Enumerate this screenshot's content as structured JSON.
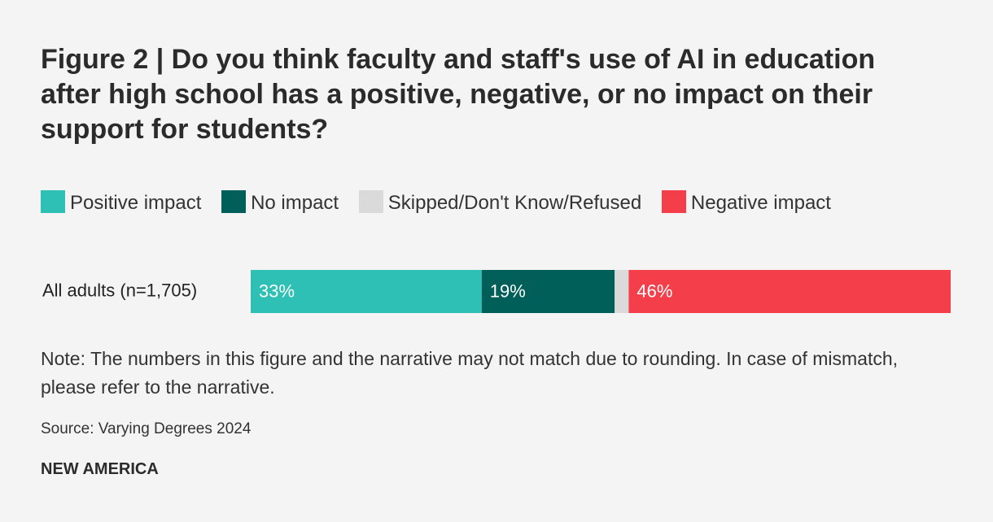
{
  "chart_data": {
    "type": "bar",
    "orientation": "horizontal",
    "stacked": true,
    "title": "Figure 2 | Do you think faculty and staff's use of AI in education after high school has a positive, negative, or no impact on their support for students?",
    "categories": [
      "All adults (n=1,705)"
    ],
    "series": [
      {
        "name": "Positive impact",
        "color": "#2ebfb5",
        "values": [
          33
        ],
        "value_labels": [
          "33%"
        ]
      },
      {
        "name": "No impact",
        "color": "#005f59",
        "values": [
          19
        ],
        "value_labels": [
          "19%"
        ]
      },
      {
        "name": "Skipped/Don't Know/Refused",
        "color": "#dadada",
        "values": [
          2
        ]
      },
      {
        "name": "Negative impact",
        "color": "#f43f4b",
        "values": [
          46
        ],
        "value_labels": [
          "46%"
        ]
      }
    ],
    "xlim": [
      0,
      100
    ],
    "note": "Note: The numbers in this figure and the narrative may not match due to rounding. In case of mismatch, please refer to the narrative.",
    "source": "Source: Varying Degrees 2024",
    "credit": "NEW AMERICA"
  }
}
